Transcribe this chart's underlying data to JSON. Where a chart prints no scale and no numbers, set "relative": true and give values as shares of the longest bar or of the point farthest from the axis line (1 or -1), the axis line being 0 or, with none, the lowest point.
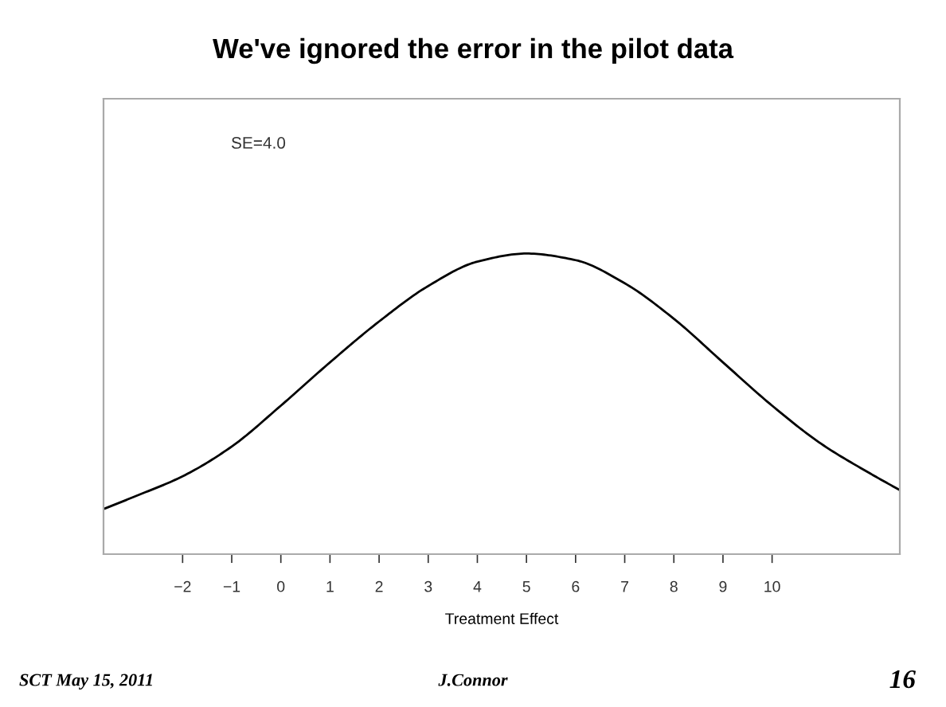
{
  "chart_data": {
    "type": "line",
    "title": "We've ignored the error in the pilot data",
    "xlabel": "Treatment Effect",
    "relative": true,
    "x": [
      -3.61,
      -3,
      -2,
      -1,
      0,
      1,
      2,
      3,
      4,
      5,
      6,
      7,
      8,
      9,
      10,
      11,
      12,
      12.6
    ],
    "series": [
      {
        "color": "#000000",
        "values": [
          0.15,
          0.19,
          0.259,
          0.358,
          0.494,
          0.638,
          0.774,
          0.892,
          0.973,
          1.0,
          0.978,
          0.901,
          0.783,
          0.638,
          0.494,
          0.367,
          0.268,
          0.213
        ]
      }
    ],
    "xlim": [
      -3.61,
      12.6
    ],
    "xticks": [
      -2,
      -1,
      0,
      1,
      2,
      3,
      4,
      5,
      6,
      7,
      8,
      9,
      10
    ],
    "tick_labels": "x",
    "grid": false,
    "legend": false,
    "marker": "none",
    "line_style": "solid",
    "annotations": [
      "SE=4.0",
      "SCT May 15, 2011",
      "J.Connor",
      "16"
    ]
  }
}
